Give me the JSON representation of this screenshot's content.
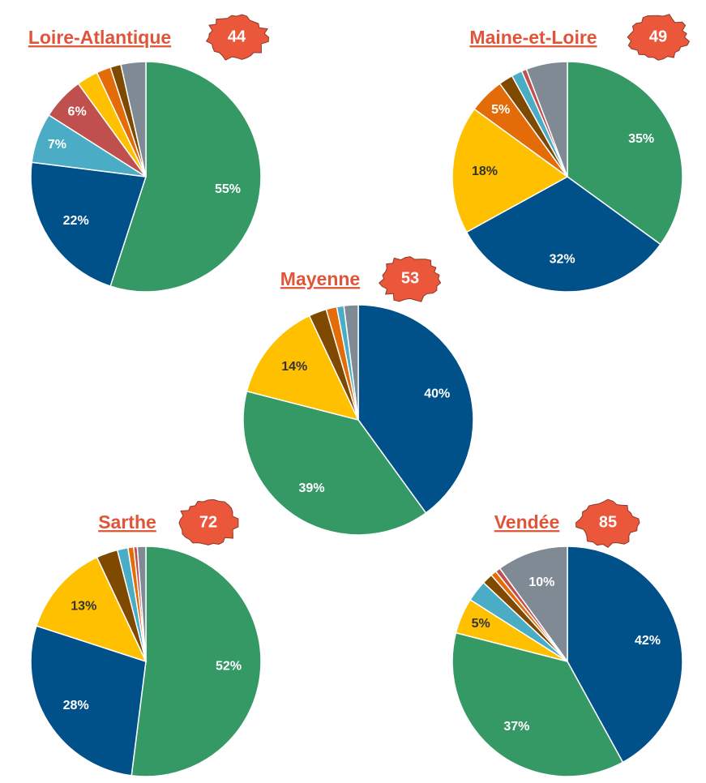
{
  "chart_data": [
    {
      "type": "pie",
      "title": "Loire-Atlantique",
      "code": "44",
      "values": [
        55,
        22,
        7,
        6,
        3,
        2,
        1.5,
        3.5
      ],
      "value_labels": [
        "55%",
        "22%",
        "7%",
        "6%",
        null,
        null,
        null,
        null
      ],
      "colors": [
        "#359966",
        "#00508a",
        "#4bacc6",
        "#c0504d",
        "#ffc000",
        "#e36c09",
        "#7f4a00",
        "#7f8a94"
      ]
    },
    {
      "type": "pie",
      "title": "Maine-et-Loire",
      "code": "49",
      "values": [
        35,
        32,
        18,
        5,
        2,
        1.5,
        0.7,
        5.8
      ],
      "value_labels": [
        "35%",
        "32%",
        "18%",
        "5%",
        null,
        null,
        null,
        null
      ],
      "colors": [
        "#359966",
        "#00508a",
        "#ffc000",
        "#e36c09",
        "#7f4a00",
        "#4bacc6",
        "#c0504d",
        "#7f8a94"
      ]
    },
    {
      "type": "pie",
      "title": "Mayenne",
      "code": "53",
      "values": [
        40,
        39,
        14,
        2.5,
        1.5,
        1,
        2
      ],
      "value_labels": [
        "40%",
        "39%",
        "14%",
        null,
        null,
        null,
        null
      ],
      "colors": [
        "#00508a",
        "#359966",
        "#ffc000",
        "#7f4a00",
        "#e36c09",
        "#4bacc6",
        "#7f8a94"
      ]
    },
    {
      "type": "pie",
      "title": "Sarthe",
      "code": "72",
      "values": [
        52,
        28,
        13,
        3,
        1.5,
        0.8,
        0.5,
        1.2
      ],
      "value_labels": [
        "52%",
        "28%",
        "13%",
        null,
        null,
        null,
        null,
        null
      ],
      "colors": [
        "#359966",
        "#00508a",
        "#ffc000",
        "#7f4a00",
        "#4bacc6",
        "#e36c09",
        "#c0504d",
        "#7f8a94"
      ]
    },
    {
      "type": "pie",
      "title": "Vendée",
      "code": "85",
      "values": [
        42,
        37,
        5,
        3,
        1.5,
        0.8,
        0.7,
        10
      ],
      "value_labels": [
        "42%",
        "37%",
        "5%",
        null,
        null,
        null,
        null,
        "10%"
      ],
      "colors": [
        "#00508a",
        "#359966",
        "#ffc000",
        "#4bacc6",
        "#7f4a00",
        "#e36c09",
        "#c0504d",
        "#7f8a94"
      ]
    }
  ]
}
